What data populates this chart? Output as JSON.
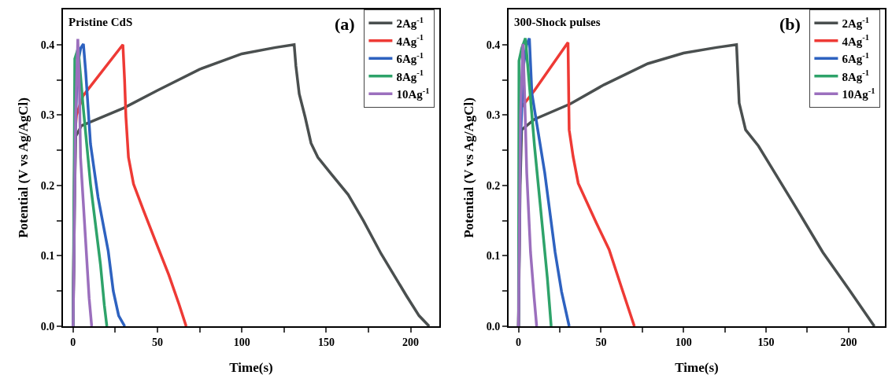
{
  "chart_data": [
    {
      "type": "line",
      "annotations": [
        "Pristine CdS",
        "(a)"
      ],
      "xlabel": "Time(s)",
      "ylabel": "Potential (V vs Ag/AgCl)",
      "xlim": [
        -6,
        217
      ],
      "ylim": [
        0,
        0.45
      ],
      "xticks": [
        0,
        {
          "value": 25,
          "label": null
        },
        50,
        {
          "value": 75,
          "label": null
        },
        100,
        {
          "value": 125,
          "label": null
        },
        150,
        {
          "value": 175,
          "label": null
        },
        200
      ],
      "yticks": [
        {
          "value": 0,
          "label": "0.0"
        },
        {
          "value": 0.05,
          "label": null
        },
        0.1,
        {
          "value": 0.15,
          "label": null
        },
        0.2,
        {
          "value": 0.25,
          "label": null
        },
        0.3,
        {
          "value": 0.35,
          "label": null
        },
        0.4
      ],
      "grid": false,
      "legend": "top right",
      "marker": "none",
      "line_style": "solid",
      "series": [
        {
          "name": "2Ag$^{-1}$",
          "color": "#4a4f4f",
          "x": [
            0,
            1,
            1.6,
            5,
            30,
            50,
            75,
            100,
            120,
            131,
            132,
            134,
            137.5,
            141,
            145,
            152.7,
            163,
            172,
            182.5,
            197.6,
            205,
            211
          ],
          "values": [
            0,
            0.2,
            0.27,
            0.285,
            0.31,
            0.335,
            0.365,
            0.387,
            0.396,
            0.4,
            0.37,
            0.33,
            0.297,
            0.26,
            0.24,
            0.217,
            0.187,
            0.15,
            0.103,
            0.043,
            0.015,
            0
          ]
        },
        {
          "name": "4Ag$^{-1}$",
          "color": "#ee3a35",
          "x": [
            0,
            1,
            2,
            5.8,
            29.5,
            30.5,
            31.3,
            32.8,
            35.8,
            41.8,
            49.3,
            56.7,
            62.8,
            67
          ],
          "values": [
            0,
            0.27,
            0.3,
            0.327,
            0.4,
            0.35,
            0.297,
            0.24,
            0.202,
            0.164,
            0.118,
            0.073,
            0.031,
            0
          ]
        },
        {
          "name": "6Ag$^{-1}$",
          "color": "#2e62c0",
          "x": [
            0,
            1,
            2.5,
            4.5,
            6.1,
            7.5,
            10.3,
            14.8,
            20.8,
            23.8,
            27,
            30.6
          ],
          "values": [
            0,
            0.25,
            0.37,
            0.395,
            0.401,
            0.36,
            0.259,
            0.183,
            0.107,
            0.05,
            0.015,
            0
          ]
        },
        {
          "name": "8Ag$^{-1}$",
          "color": "#2ea36a",
          "x": [
            0,
            0.7,
            1,
            3,
            5.8,
            10.3,
            16.2,
            18.5,
            20
          ],
          "values": [
            0,
            0.25,
            0.38,
            0.395,
            0.316,
            0.202,
            0.088,
            0.03,
            0
          ]
        },
        {
          "name": "10Ag$^{-1}$",
          "color": "#9b6fbd",
          "x": [
            0,
            1.5,
            2.8,
            3.8,
            4.4,
            7.3,
            9.5,
            11
          ],
          "values": [
            0,
            0.3,
            0.408,
            0.33,
            0.24,
            0.126,
            0.04,
            0
          ]
        }
      ]
    },
    {
      "type": "line",
      "annotations": [
        "300-Shock pulses",
        "(b)"
      ],
      "xlabel": "Time(s)",
      "ylabel": "Potential (V vs Ag/AgCl)",
      "xlim": [
        -6,
        222
      ],
      "ylim": [
        0,
        0.45
      ],
      "xticks": [
        0,
        {
          "value": 25,
          "label": null
        },
        50,
        {
          "value": 75,
          "label": null
        },
        100,
        {
          "value": 125,
          "label": null
        },
        150,
        {
          "value": 175,
          "label": null
        },
        200
      ],
      "yticks": [
        {
          "value": 0,
          "label": "0.0"
        },
        {
          "value": 0.05,
          "label": null
        },
        0.1,
        {
          "value": 0.15,
          "label": null
        },
        0.2,
        {
          "value": 0.25,
          "label": null
        },
        0.3,
        {
          "value": 0.35,
          "label": null
        },
        0.4
      ],
      "grid": false,
      "legend": "top right",
      "marker": "none",
      "line_style": "solid",
      "series": [
        {
          "name": "2Ag$^{-1}$",
          "color": "#4a4f4f",
          "x": [
            0,
            1,
            1.9,
            9.7,
            31.5,
            51.8,
            78.3,
            100,
            120,
            132.1,
            133.7,
            137.6,
            145.4,
            153.2,
            168.8,
            184.4,
            200,
            215.6
          ],
          "values": [
            0,
            0.2,
            0.279,
            0.294,
            0.316,
            0.343,
            0.373,
            0.388,
            0.396,
            0.4,
            0.317,
            0.279,
            0.256,
            0.226,
            0.166,
            0.105,
            0.053,
            0
          ]
        },
        {
          "name": "4Ag$^{-1}$",
          "color": "#ee3a35",
          "x": [
            0,
            1.1,
            9.7,
            30,
            30.7,
            33.1,
            36.2,
            47.1,
            54.9,
            62.7,
            70.2
          ],
          "values": [
            0,
            0.309,
            0.335,
            0.403,
            0.279,
            0.241,
            0.203,
            0.147,
            0.109,
            0.053,
            0
          ]
        },
        {
          "name": "6Ag$^{-1}$",
          "color": "#2e62c0",
          "x": [
            0,
            1,
            3,
            5,
            6.6,
            8.1,
            15.9,
            22.2,
            26.1,
            30.7
          ],
          "values": [
            0,
            0.25,
            0.37,
            0.4,
            0.409,
            0.331,
            0.218,
            0.105,
            0.049,
            0
          ]
        },
        {
          "name": "8Ag$^{-1}$",
          "color": "#2ea36a",
          "x": [
            0,
            0.3,
            2,
            4.2,
            9.7,
            14.4,
            17.5,
            19.8
          ],
          "values": [
            0,
            0.377,
            0.395,
            0.409,
            0.256,
            0.143,
            0.068,
            0
          ]
        },
        {
          "name": "10Ag$^{-1}$",
          "color": "#9b6fbd",
          "x": [
            0,
            1.2,
            2.7,
            3.7,
            5,
            7.3,
            9.5,
            11
          ],
          "values": [
            0,
            0.3,
            0.401,
            0.33,
            0.218,
            0.105,
            0.04,
            0
          ]
        }
      ]
    }
  ]
}
